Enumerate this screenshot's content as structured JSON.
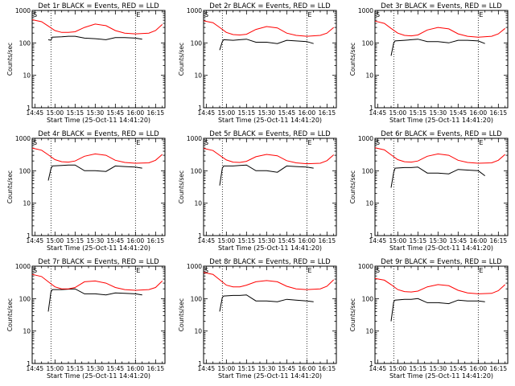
{
  "xlabel": "Start Time (25-Oct-11 14:41:20)",
  "ylabel": "Counts/sec",
  "x_tick_labels": [
    "14:45",
    "15:00",
    "15:15",
    "15:30",
    "15:45",
    "16:00",
    "16:15"
  ],
  "y_tick_labels": [
    "1",
    "10",
    "100",
    "1000"
  ],
  "colors": {
    "events": "#000000",
    "lld": "#ff0000",
    "axes": "#000000",
    "background": "#ffffff"
  },
  "chart_data": [
    {
      "type": "line",
      "title": "Det 1r BLACK = Events, RED = LLD",
      "xlim": [
        "14:43",
        "16:22"
      ],
      "ylim": [
        1,
        1000
      ],
      "yscale": "log",
      "grid": false,
      "markers": {
        "S": "14:43",
        "E": "16:00"
      },
      "dotted_lines": [
        "14:57",
        "16:00"
      ],
      "series": [
        {
          "name": "Events",
          "x": [
            "14:55",
            "14:57",
            "14:58",
            "15:05",
            "15:10",
            "15:15",
            "15:22",
            "15:30",
            "15:38",
            "15:45",
            "15:52",
            "16:00",
            "16:05"
          ],
          "y": [
            125,
            120,
            150,
            155,
            160,
            160,
            140,
            135,
            125,
            145,
            145,
            140,
            130
          ]
        },
        {
          "name": "LLD",
          "x": [
            "14:43",
            "14:50",
            "14:55",
            "15:00",
            "15:05",
            "15:10",
            "15:15",
            "15:22",
            "15:30",
            "15:38",
            "15:45",
            "15:52",
            "16:00",
            "16:10",
            "16:15",
            "16:20"
          ],
          "y": [
            520,
            450,
            330,
            240,
            210,
            210,
            220,
            300,
            380,
            340,
            240,
            200,
            190,
            200,
            240,
            370
          ]
        }
      ]
    },
    {
      "type": "line",
      "title": "Det 2r BLACK = Events, RED = LLD",
      "xlim": [
        "14:43",
        "16:22"
      ],
      "ylim": [
        1,
        1000
      ],
      "yscale": "log",
      "grid": false,
      "markers": {
        "S": "14:43",
        "E": "16:00"
      },
      "dotted_lines": [
        "14:57",
        "16:00"
      ],
      "series": [
        {
          "name": "Events",
          "x": [
            "14:55",
            "14:57",
            "14:58",
            "15:05",
            "15:10",
            "15:15",
            "15:22",
            "15:30",
            "15:38",
            "15:45",
            "15:52",
            "16:00",
            "16:05"
          ],
          "y": [
            60,
            110,
            125,
            120,
            125,
            130,
            105,
            105,
            95,
            120,
            115,
            110,
            95
          ]
        },
        {
          "name": "LLD",
          "x": [
            "14:43",
            "14:50",
            "14:55",
            "15:00",
            "15:05",
            "15:10",
            "15:15",
            "15:22",
            "15:30",
            "15:38",
            "15:45",
            "15:52",
            "16:00",
            "16:10",
            "16:15",
            "16:20"
          ],
          "y": [
            480,
            420,
            300,
            210,
            180,
            175,
            185,
            260,
            320,
            290,
            200,
            170,
            160,
            170,
            200,
            300
          ]
        }
      ]
    },
    {
      "type": "line",
      "title": "Det 3r BLACK = Events, RED = LLD",
      "xlim": [
        "14:43",
        "16:22"
      ],
      "ylim": [
        1,
        1000
      ],
      "yscale": "log",
      "grid": false,
      "markers": {
        "S": "14:43",
        "E": "16:00"
      },
      "dotted_lines": [
        "14:57",
        "16:00"
      ],
      "series": [
        {
          "name": "Events",
          "x": [
            "14:55",
            "14:57",
            "14:58",
            "15:05",
            "15:10",
            "15:15",
            "15:22",
            "15:30",
            "15:38",
            "15:45",
            "15:52",
            "16:00",
            "16:05"
          ],
          "y": [
            40,
            100,
            115,
            120,
            125,
            130,
            110,
            110,
            100,
            120,
            120,
            115,
            95
          ]
        },
        {
          "name": "LLD",
          "x": [
            "14:43",
            "14:50",
            "14:55",
            "15:00",
            "15:05",
            "15:10",
            "15:15",
            "15:22",
            "15:30",
            "15:38",
            "15:45",
            "15:52",
            "16:00",
            "16:10",
            "16:15",
            "16:20"
          ],
          "y": [
            470,
            400,
            280,
            200,
            170,
            165,
            175,
            250,
            300,
            270,
            190,
            160,
            150,
            160,
            190,
            280
          ]
        }
      ]
    },
    {
      "type": "line",
      "title": "Det 4r BLACK = Events, RED = LLD",
      "xlim": [
        "14:43",
        "16:22"
      ],
      "ylim": [
        1,
        1000
      ],
      "yscale": "log",
      "grid": false,
      "markers": {
        "S": "14:43",
        "E": "16:00"
      },
      "dotted_lines": [
        "14:57",
        "16:00"
      ],
      "series": [
        {
          "name": "Events",
          "x": [
            "14:55",
            "14:57",
            "14:58",
            "15:05",
            "15:10",
            "15:15",
            "15:22",
            "15:30",
            "15:38",
            "15:45",
            "15:52",
            "16:00",
            "16:05"
          ],
          "y": [
            50,
            115,
            140,
            145,
            150,
            150,
            100,
            100,
            95,
            140,
            135,
            130,
            120
          ]
        },
        {
          "name": "LLD",
          "x": [
            "14:43",
            "14:50",
            "14:55",
            "15:00",
            "15:05",
            "15:10",
            "15:15",
            "15:22",
            "15:30",
            "15:38",
            "15:45",
            "15:52",
            "16:00",
            "16:10",
            "16:15",
            "16:20"
          ],
          "y": [
            500,
            430,
            310,
            220,
            190,
            185,
            200,
            280,
            330,
            300,
            210,
            180,
            170,
            175,
            210,
            320
          ]
        }
      ]
    },
    {
      "type": "line",
      "title": "Det 5r BLACK = Events, RED = LLD",
      "xlim": [
        "14:43",
        "16:22"
      ],
      "ylim": [
        1,
        1000
      ],
      "yscale": "log",
      "grid": false,
      "markers": {
        "S": "14:43",
        "E": "16:00"
      },
      "dotted_lines": [
        "14:57",
        "16:00"
      ],
      "series": [
        {
          "name": "Events",
          "x": [
            "14:55",
            "14:57",
            "14:58",
            "15:05",
            "15:10",
            "15:15",
            "15:22",
            "15:30",
            "15:38",
            "15:45",
            "15:52",
            "16:00",
            "16:05"
          ],
          "y": [
            35,
            120,
            140,
            140,
            145,
            150,
            100,
            100,
            90,
            140,
            135,
            130,
            120
          ]
        },
        {
          "name": "LLD",
          "x": [
            "14:43",
            "14:50",
            "14:55",
            "15:00",
            "15:05",
            "15:10",
            "15:15",
            "15:22",
            "15:30",
            "15:38",
            "15:45",
            "15:52",
            "16:00",
            "16:10",
            "16:15",
            "16:20"
          ],
          "y": [
            490,
            420,
            300,
            215,
            185,
            180,
            195,
            270,
            320,
            290,
            205,
            175,
            165,
            170,
            205,
            310
          ]
        }
      ]
    },
    {
      "type": "line",
      "title": "Det 6r BLACK = Events, RED = LLD",
      "xlim": [
        "14:43",
        "16:22"
      ],
      "ylim": [
        1,
        1000
      ],
      "yscale": "log",
      "grid": false,
      "markers": {
        "S": "14:43",
        "E": "16:00"
      },
      "dotted_lines": [
        "14:57",
        "16:00"
      ],
      "series": [
        {
          "name": "Events",
          "x": [
            "14:55",
            "14:57",
            "14:58",
            "15:05",
            "15:10",
            "15:15",
            "15:22",
            "15:30",
            "15:38",
            "15:45",
            "15:52",
            "16:00",
            "16:05"
          ],
          "y": [
            30,
            90,
            120,
            125,
            125,
            130,
            85,
            85,
            80,
            110,
            105,
            100,
            70
          ]
        },
        {
          "name": "LLD",
          "x": [
            "14:43",
            "14:50",
            "14:55",
            "15:00",
            "15:05",
            "15:10",
            "15:15",
            "15:22",
            "15:30",
            "15:38",
            "15:45",
            "15:52",
            "16:00",
            "16:10",
            "16:15",
            "16:20"
          ],
          "y": [
            510,
            440,
            310,
            220,
            190,
            185,
            200,
            280,
            330,
            300,
            210,
            180,
            170,
            175,
            210,
            320
          ]
        }
      ]
    },
    {
      "type": "line",
      "title": "Det 7r BLACK = Events, RED = LLD",
      "xlim": [
        "14:43",
        "16:22"
      ],
      "ylim": [
        1,
        1000
      ],
      "yscale": "log",
      "grid": false,
      "markers": {
        "S": "14:43",
        "E": "16:00"
      },
      "dotted_lines": [
        "14:57",
        "16:00"
      ],
      "series": [
        {
          "name": "Events",
          "x": [
            "14:55",
            "14:57",
            "14:58",
            "15:05",
            "15:10",
            "15:15",
            "15:22",
            "15:30",
            "15:38",
            "15:45",
            "15:52",
            "16:00",
            "16:05"
          ],
          "y": [
            40,
            160,
            190,
            190,
            195,
            200,
            140,
            140,
            130,
            150,
            145,
            140,
            130
          ]
        },
        {
          "name": "LLD",
          "x": [
            "14:43",
            "14:50",
            "14:55",
            "15:00",
            "15:05",
            "15:10",
            "15:15",
            "15:22",
            "15:30",
            "15:38",
            "15:45",
            "15:52",
            "16:00",
            "16:10",
            "16:15",
            "16:20"
          ],
          "y": [
            560,
            480,
            330,
            230,
            200,
            200,
            220,
            330,
            350,
            300,
            220,
            190,
            180,
            190,
            220,
            350
          ]
        }
      ]
    },
    {
      "type": "line",
      "title": "Det 8r BLACK = Events, RED = LLD",
      "xlim": [
        "14:43",
        "16:22"
      ],
      "ylim": [
        1,
        1000
      ],
      "yscale": "log",
      "grid": false,
      "markers": {
        "S": "14:43",
        "E": "16:00"
      },
      "dotted_lines": [
        "14:57",
        "16:00"
      ],
      "series": [
        {
          "name": "Events",
          "x": [
            "14:55",
            "14:57",
            "14:58",
            "15:05",
            "15:10",
            "15:15",
            "15:22",
            "15:30",
            "15:38",
            "15:45",
            "15:52",
            "16:00",
            "16:05"
          ],
          "y": [
            40,
            110,
            120,
            125,
            125,
            130,
            85,
            85,
            80,
            95,
            90,
            85,
            80
          ]
        },
        {
          "name": "LLD",
          "x": [
            "14:43",
            "14:50",
            "14:55",
            "15:00",
            "15:05",
            "15:10",
            "15:15",
            "15:22",
            "15:30",
            "15:38",
            "15:45",
            "15:52",
            "16:00",
            "16:10",
            "16:15",
            "16:20"
          ],
          "y": [
            640,
            560,
            380,
            260,
            230,
            230,
            260,
            330,
            360,
            330,
            240,
            200,
            190,
            200,
            240,
            380
          ]
        }
      ]
    },
    {
      "type": "line",
      "title": "Det 9r BLACK = Events, RED = LLD",
      "xlim": [
        "14:43",
        "16:22"
      ],
      "ylim": [
        1,
        1000
      ],
      "yscale": "log",
      "grid": false,
      "markers": {
        "S": "14:43",
        "E": "16:00"
      },
      "dotted_lines": [
        "14:57",
        "16:00"
      ],
      "series": [
        {
          "name": "Events",
          "x": [
            "14:55",
            "14:57",
            "14:58",
            "15:05",
            "15:10",
            "15:15",
            "15:22",
            "15:30",
            "15:38",
            "15:45",
            "15:52",
            "16:00",
            "16:05"
          ],
          "y": [
            20,
            80,
            90,
            95,
            95,
            100,
            75,
            75,
            70,
            90,
            85,
            85,
            80
          ]
        },
        {
          "name": "LLD",
          "x": [
            "14:43",
            "14:50",
            "14:55",
            "15:00",
            "15:05",
            "15:10",
            "15:15",
            "15:22",
            "15:30",
            "15:38",
            "15:45",
            "15:52",
            "16:00",
            "16:10",
            "16:15",
            "16:20"
          ],
          "y": [
            420,
            370,
            270,
            190,
            165,
            160,
            170,
            230,
            270,
            250,
            180,
            150,
            140,
            145,
            175,
            270
          ]
        }
      ]
    }
  ]
}
